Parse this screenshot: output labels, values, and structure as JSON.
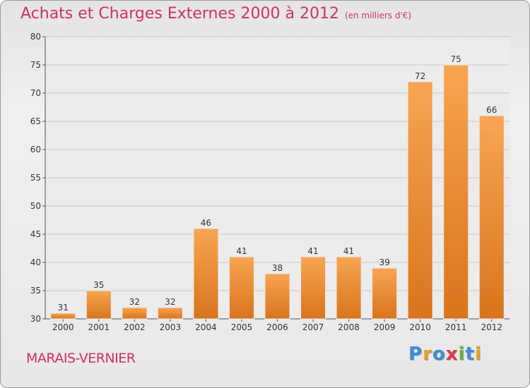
{
  "chart_data": {
    "type": "bar",
    "title": "Achats et Charges Externes 2000 à 2012",
    "subtitle": "(en milliers d'€)",
    "categories": [
      "2000",
      "2001",
      "2002",
      "2003",
      "2004",
      "2005",
      "2006",
      "2007",
      "2008",
      "2009",
      "2010",
      "2011",
      "2012"
    ],
    "values": [
      31,
      35,
      32,
      32,
      46,
      41,
      38,
      41,
      41,
      39,
      72,
      75,
      66
    ],
    "ylim": [
      30,
      80
    ],
    "yticks": [
      30,
      35,
      40,
      45,
      50,
      55,
      60,
      65,
      70,
      75,
      80
    ],
    "grid": true,
    "bar_color": "#f0923a"
  },
  "place_name": "MARAIS-VERNIER",
  "logo": {
    "letters": [
      "P",
      "r",
      "o",
      "x",
      "i",
      "t",
      "i"
    ],
    "colors": [
      "#3a8fd6",
      "#e6a21e",
      "#3a8fd6",
      "#e23b4a",
      "#6bb43a",
      "#3a8fd6",
      "#e6a21e"
    ]
  }
}
